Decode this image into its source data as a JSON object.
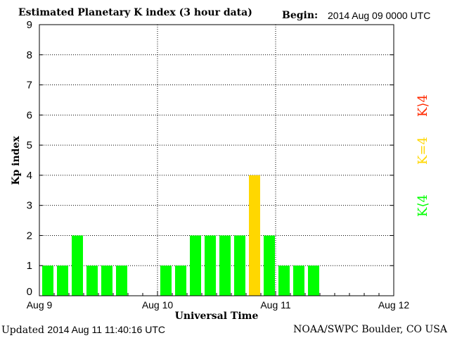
{
  "header": {
    "title": "Estimated Planetary K index (3 hour data)",
    "begin_label": "Begin:",
    "begin_value": "2014 Aug 09 0000 UTC"
  },
  "footer": {
    "updated_label": "Updated",
    "updated_value": "2014 Aug 11 11:40:16 UTC",
    "source": "NOAA/SWPC Boulder, CO USA"
  },
  "legend": {
    "high": "K⟩4",
    "mid": "K=4",
    "low": "K⟨4"
  },
  "colors": {
    "low": "#00ff00",
    "mid": "#ffd700",
    "high": "#ff2a00"
  },
  "chart_data": {
    "type": "bar",
    "xlabel": "Universal Time",
    "ylabel": "Kp index",
    "ylim": [
      0,
      9
    ],
    "yticks": [
      "0",
      "1",
      "2",
      "3",
      "4",
      "5",
      "6",
      "7",
      "8",
      "9"
    ],
    "xticks": [
      "Aug 9",
      "Aug 10",
      "Aug 11",
      "Aug 12"
    ],
    "grid": true,
    "values": [
      1,
      1,
      2,
      1,
      1,
      1,
      null,
      null,
      1,
      1,
      2,
      2,
      2,
      2,
      4,
      2,
      1,
      1,
      1
    ]
  }
}
